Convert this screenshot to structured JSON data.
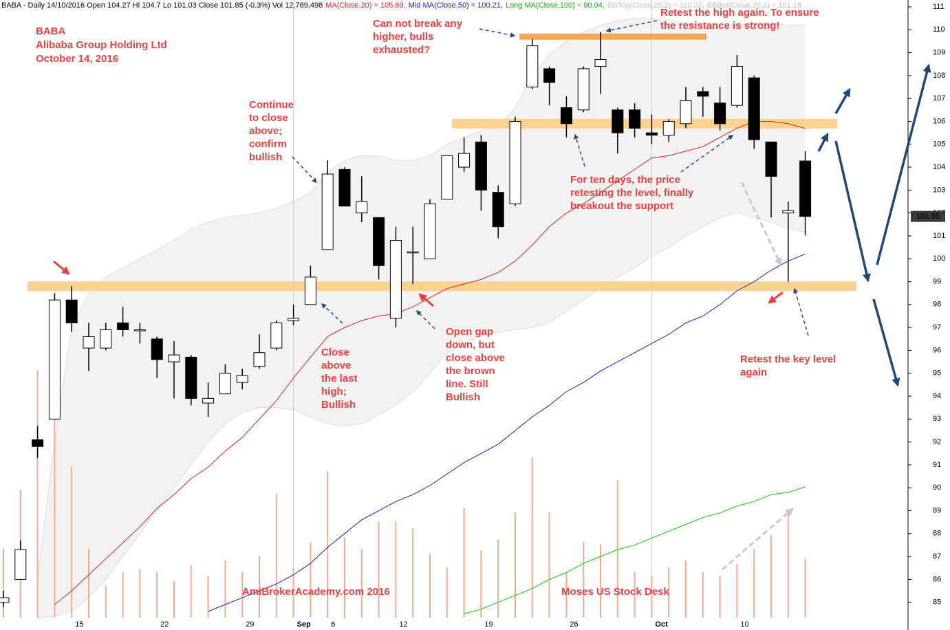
{
  "chart_data": {
    "type": "candlestick",
    "header": [
      {
        "text": "BABA - Daily 14/10/2016 Open 104.27 Hi 104.7 Lo 101.03 Close 101.85 (-0.3%) Vol 12,789,498",
        "color": "#000000"
      },
      {
        "text": "MA(Close,20) = 105.69,",
        "color": "#e02020"
      },
      {
        "text": "Mid MA(Close,50) = 100.21,",
        "color": "#2020d0"
      },
      {
        "text": "Long MA(Close,100) = 90.04,",
        "color": "#10b010"
      },
      {
        "text": "BBTop(Close,20,2) = 110.22,",
        "color": "#c0c0c0"
      },
      {
        "text": "BBBot(Close,20,2) = 101.16",
        "color": "#c0c0c0"
      }
    ],
    "title_lines": [
      "BABA",
      "Alibaba Group Holding Ltd",
      "October 14, 2016"
    ],
    "annotations": [
      {
        "lines": [
          "Can not break any",
          "higher, bulls",
          "exhausted?"
        ]
      },
      {
        "lines": [
          "Retest the high again. To ensure",
          "the resistance is strong!"
        ]
      },
      {
        "lines": [
          "Continue",
          "to close",
          "above;",
          "confirm",
          "bullish"
        ]
      },
      {
        "lines": [
          "For ten days, the price",
          "retesting the level, finally",
          "breakout the support"
        ]
      },
      {
        "lines": [
          "Close",
          "above",
          "the last",
          "high;",
          "Bullish"
        ]
      },
      {
        "lines": [
          "Open gap",
          "down, but",
          "close above",
          "the brown",
          "line. Still",
          "Bullish"
        ]
      },
      {
        "lines": [
          "Retest the key level",
          "again"
        ]
      },
      {
        "lines": [
          "AmiBrokerAcademy.com 2016"
        ]
      },
      {
        "lines": [
          "Moses US Stock Desk"
        ]
      }
    ],
    "categories": [
      null,
      null,
      null,
      null,
      "15",
      null,
      null,
      null,
      null,
      "22",
      null,
      null,
      null,
      null,
      "29",
      null,
      null,
      "Sep",
      null,
      "6",
      null,
      null,
      null,
      "12",
      null,
      null,
      null,
      null,
      "19",
      null,
      null,
      null,
      null,
      "26",
      null,
      null,
      null,
      null,
      "Oct",
      null,
      null,
      null,
      null,
      "10",
      null,
      null,
      null,
      null
    ],
    "open": [
      85.0,
      86.0,
      92.1,
      93.0,
      98.2,
      96.1,
      96.1,
      97.2,
      96.9,
      96.5,
      95.5,
      95.7,
      93.7,
      94.1,
      94.6,
      95.3,
      96.1,
      97.3,
      98.0,
      100.4,
      103.9,
      102.0,
      101.8,
      97.4,
      100.3,
      100.0,
      102.6,
      104.0,
      105.1,
      102.9,
      102.4,
      107.5,
      108.3,
      106.6,
      106.5,
      108.4,
      106.5,
      106.5,
      105.5,
      105.4,
      105.9,
      107.3,
      106.8,
      106.7,
      107.9,
      105.1,
      102.0,
      104.27
    ],
    "high": [
      85.5,
      87.7,
      92.7,
      98.5,
      98.8,
      97.2,
      97.2,
      97.9,
      97.2,
      96.6,
      96.4,
      95.8,
      94.6,
      95.4,
      95.2,
      96.7,
      97.3,
      98.0,
      99.7,
      104.3,
      104.0,
      103.6,
      101.8,
      101.4,
      101.4,
      102.6,
      104.5,
      105.3,
      105.4,
      103.2,
      106.2,
      109.6,
      108.4,
      107.1,
      108.4,
      109.9,
      106.6,
      106.8,
      106.3,
      106.1,
      107.5,
      107.5,
      107.5,
      108.9,
      108.0,
      105.1,
      102.5,
      104.7
    ],
    "low": [
      84.8,
      86.0,
      91.3,
      93.0,
      96.8,
      95.1,
      96.0,
      96.6,
      96.3,
      94.8,
      93.9,
      93.6,
      93.1,
      94.1,
      94.3,
      95.2,
      96.0,
      97.1,
      98.0,
      100.4,
      102.3,
      101.6,
      99.1,
      97.0,
      98.9,
      100.0,
      102.6,
      103.8,
      102.1,
      100.9,
      102.3,
      107.4,
      106.7,
      105.3,
      106.4,
      107.2,
      104.6,
      105.3,
      105.0,
      105.1,
      105.7,
      106.2,
      105.6,
      106.6,
      104.8,
      101.8,
      99.0,
      101.03
    ],
    "close": [
      85.2,
      87.3,
      91.8,
      98.2,
      97.2,
      96.6,
      96.9,
      96.9,
      96.9,
      95.6,
      95.8,
      93.9,
      93.9,
      95.0,
      94.9,
      95.9,
      97.2,
      97.4,
      99.2,
      103.7,
      102.3,
      102.5,
      99.7,
      100.8,
      100.3,
      102.4,
      104.5,
      104.6,
      103.0,
      101.4,
      106.0,
      109.3,
      107.7,
      105.9,
      108.3,
      108.7,
      105.5,
      105.7,
      105.4,
      106.0,
      106.9,
      107.1,
      105.9,
      108.4,
      105.2,
      103.6,
      102.1,
      101.85
    ],
    "up_color": "#ffffff",
    "down_color": "#000000",
    "volume": [
      15,
      28,
      54,
      71,
      33,
      15,
      7,
      10,
      10.5,
      10,
      8,
      11.5,
      9,
      12.5,
      10,
      13.5,
      27,
      11,
      16.5,
      32,
      17.5,
      15,
      21,
      21,
      19.5,
      14,
      11,
      24,
      14.7,
      17,
      23,
      35,
      23,
      10,
      16.5,
      16,
      30,
      10,
      9,
      11,
      12.5,
      10,
      9,
      11.7,
      15,
      18,
      23,
      12.79
    ],
    "volume_color": "#f6a98a",
    "volume_lim": [
      0,
      135
    ],
    "overlays": [
      {
        "color": "#e02020",
        "values": [
          null,
          null,
          null,
          84.9,
          85.5,
          86.2,
          86.9,
          87.6,
          88.3,
          89.1,
          89.7,
          90.4,
          90.9,
          91.6,
          92.2,
          93.0,
          93.8,
          94.8,
          95.7,
          96.6,
          97.0,
          97.3,
          97.5,
          97.6,
          97.9,
          98.3,
          98.7,
          98.9,
          99.1,
          99.4,
          99.9,
          100.6,
          101.4,
          102.0,
          102.4,
          102.9,
          103.4,
          103.9,
          104.4,
          104.5,
          104.7,
          104.9,
          105.3,
          105.7,
          106.0,
          106.0,
          105.9,
          105.69
        ]
      },
      {
        "color": "#1a1ad0",
        "values": [
          null,
          null,
          null,
          null,
          null,
          null,
          null,
          null,
          null,
          null,
          null,
          null,
          84.6,
          84.9,
          85.2,
          85.5,
          85.8,
          86.2,
          86.7,
          87.4,
          88.0,
          88.6,
          89.0,
          89.4,
          89.7,
          90.1,
          90.6,
          91.1,
          91.5,
          91.9,
          92.5,
          93.1,
          93.6,
          94.2,
          94.6,
          95.1,
          95.5,
          95.9,
          96.3,
          96.7,
          97.2,
          97.5,
          98.0,
          98.6,
          99.0,
          99.5,
          99.9,
          100.21
        ]
      },
      {
        "color": "#10c010",
        "values": [
          null,
          null,
          null,
          null,
          null,
          null,
          null,
          null,
          null,
          null,
          null,
          null,
          null,
          null,
          null,
          null,
          null,
          null,
          null,
          null,
          null,
          null,
          null,
          null,
          null,
          null,
          null,
          84.5,
          84.7,
          85.0,
          85.3,
          85.6,
          86.0,
          86.3,
          86.7,
          87.0,
          87.3,
          87.5,
          87.8,
          88.1,
          88.4,
          88.7,
          88.9,
          89.2,
          89.4,
          89.7,
          89.8,
          90.04
        ]
      }
    ],
    "bands": {
      "color": "#f2f2f2",
      "edge": "#dddddd",
      "upper": [
        null,
        null,
        86.0,
        92.0,
        97.0,
        98.5,
        99.2,
        99.6,
        100.0,
        100.4,
        100.8,
        101.3,
        101.6,
        101.8,
        101.9,
        102.0,
        102.2,
        102.5,
        102.9,
        103.8,
        104.3,
        104.5,
        104.5,
        104.3,
        104.3,
        104.5,
        105.0,
        105.3,
        105.6,
        105.8,
        106.6,
        108.0,
        108.9,
        109.5,
        109.9,
        110.2,
        110.4,
        110.5,
        110.5,
        110.4,
        110.3,
        110.2,
        110.1,
        110.2,
        110.3,
        110.3,
        110.2,
        110.22
      ],
      "lower": [
        null,
        null,
        84.3,
        84.4,
        84.6,
        85.2,
        86.0,
        87.0,
        88.0,
        89.0,
        90.0,
        91.0,
        92.0,
        92.8,
        93.3,
        93.5,
        93.5,
        93.4,
        93.1,
        92.8,
        92.7,
        92.8,
        93.2,
        93.6,
        94.2,
        95.0,
        95.9,
        96.3,
        96.6,
        96.8,
        96.9,
        97.0,
        97.2,
        97.7,
        98.2,
        98.7,
        99.2,
        99.6,
        100.1,
        100.5,
        101.0,
        101.4,
        101.8,
        102.0,
        101.8,
        101.6,
        101.3,
        101.16
      ]
    },
    "levels": [
      {
        "value": 98.8,
        "color": "#fbd08a"
      },
      {
        "value": 105.9,
        "color": "#fbd08a"
      },
      {
        "value": 109.7,
        "color": "#f3a24b"
      }
    ],
    "last_price": 101.85,
    "ylim": [
      84.33,
      111.3
    ],
    "yticks": [
      85,
      86,
      87,
      88,
      89,
      90,
      91,
      92,
      93,
      94,
      95,
      96,
      97,
      98,
      99,
      100,
      101,
      102,
      103,
      104,
      105,
      106,
      107,
      108,
      109,
      110,
      111
    ]
  }
}
